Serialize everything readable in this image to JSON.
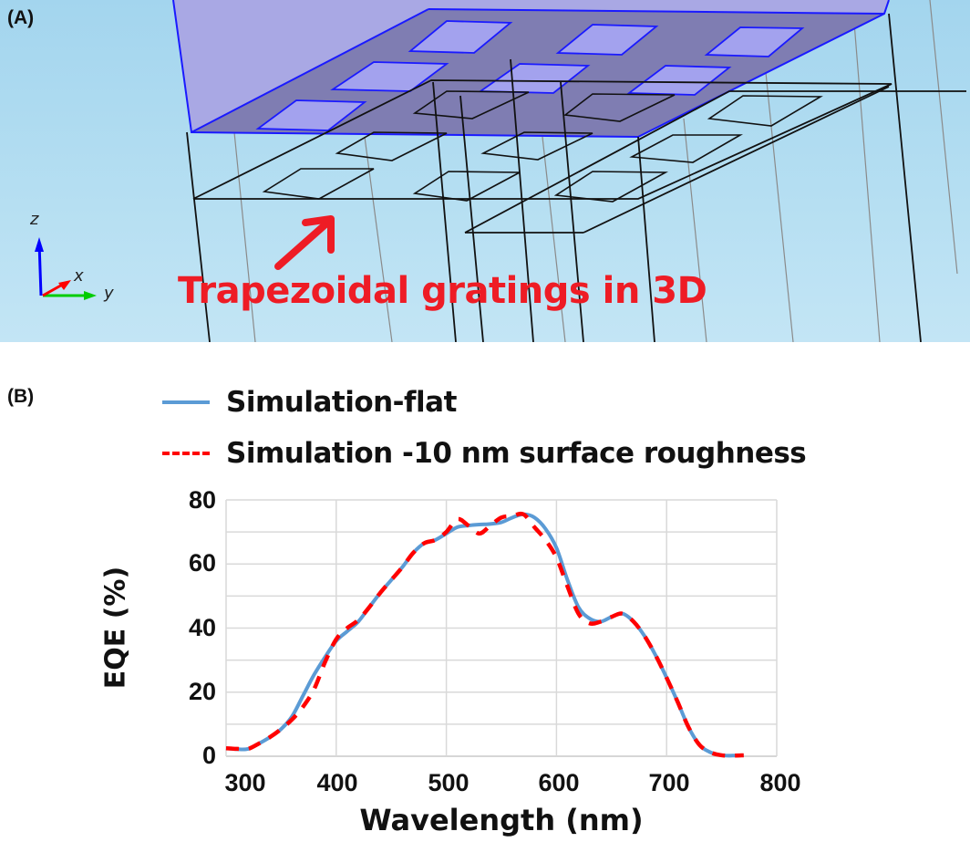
{
  "panel_a": {
    "label": "(A)",
    "annotation": "Trapezoidal gratings in 3D",
    "axes_triad": {
      "z": "z",
      "x": "x",
      "y": "y"
    },
    "colors": {
      "background": "#b3ddf1",
      "slab_fill": "#a9a8e4",
      "slab_edge": "#1a1aff",
      "annotation": "#ee1c25",
      "axis_z": "#0000ff",
      "axis_x": "#ff0000",
      "axis_y": "#00cc00"
    }
  },
  "panel_b": {
    "label": "(B)",
    "legend": [
      {
        "label": "Simulation-flat",
        "style": "solid",
        "color": "#5b9bd5"
      },
      {
        "label": "Simulation -10 nm surface roughness",
        "style": "dashed",
        "color": "#ff0000"
      }
    ],
    "y_ticks": [
      "0",
      "20",
      "40",
      "60",
      "80"
    ],
    "x_ticks": [
      "300",
      "400",
      "500",
      "600",
      "700",
      "800"
    ],
    "ylabel": "EQE (%)",
    "xlabel": "Wavelength (nm)"
  },
  "chart_data": {
    "type": "line",
    "title": "",
    "xlabel": "Wavelength (nm)",
    "ylabel": "EQE (%)",
    "xlim": [
      300,
      800
    ],
    "ylim": [
      0,
      80
    ],
    "grid": true,
    "legend_position": "top",
    "x": [
      300,
      310,
      320,
      330,
      340,
      350,
      360,
      370,
      380,
      390,
      400,
      410,
      420,
      430,
      440,
      450,
      460,
      470,
      480,
      490,
      500,
      510,
      520,
      530,
      540,
      550,
      560,
      570,
      580,
      590,
      600,
      610,
      620,
      630,
      640,
      650,
      660,
      670,
      680,
      690,
      700,
      710,
      720,
      730,
      740,
      750,
      760,
      770
    ],
    "series": [
      {
        "name": "Simulation-flat",
        "style": "solid",
        "color": "#5b9bd5",
        "values": [
          2.5,
          2.2,
          2.3,
          4.0,
          6.0,
          8.5,
          12.5,
          19.0,
          25.5,
          31.0,
          36.0,
          39.0,
          42.0,
          46.5,
          51.0,
          55.0,
          59.0,
          63.5,
          66.5,
          67.5,
          69.5,
          71.5,
          72.0,
          72.3,
          72.5,
          73.0,
          74.5,
          75.5,
          74.5,
          71.0,
          65.0,
          55.0,
          46.5,
          43.0,
          42.0,
          43.5,
          44.5,
          42.0,
          37.5,
          31.5,
          24.5,
          17.0,
          9.0,
          3.5,
          1.2,
          0.3,
          0.2,
          0.3
        ]
      },
      {
        "name": "Simulation -10 nm surface roughness",
        "style": "dashed",
        "color": "#ff0000",
        "values": [
          2.5,
          2.3,
          2.3,
          4.0,
          6.0,
          8.5,
          11.5,
          15.5,
          21.0,
          29.5,
          36.5,
          40.0,
          42.5,
          46.5,
          51.0,
          55.0,
          59.0,
          63.5,
          66.5,
          67.5,
          70.0,
          74.0,
          72.0,
          69.5,
          72.0,
          74.5,
          75.0,
          75.5,
          71.5,
          67.5,
          62.0,
          53.0,
          44.5,
          41.5,
          42.0,
          43.5,
          44.5,
          42.0,
          37.5,
          31.5,
          24.5,
          17.0,
          9.0,
          3.5,
          1.2,
          0.3,
          0.2,
          0.3
        ]
      }
    ]
  }
}
